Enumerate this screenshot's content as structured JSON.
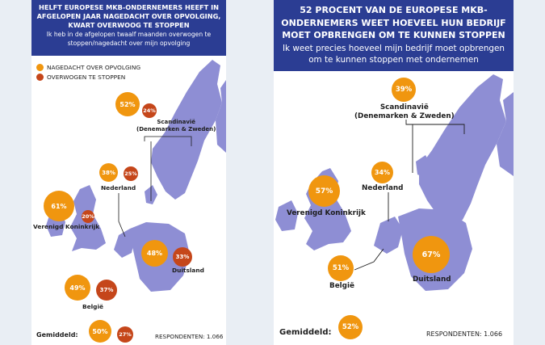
{
  "left": {
    "title": "Helft Europese mkb-ondernemers heeft in afgelopen jaar nagedacht over opvolging, kwart overwoog te stoppen",
    "subtitle": "Ik heb in de afgelopen twaalf maanden overwogen te stoppen/nagedacht over mijn opvolging",
    "legend": [
      {
        "label": "NAGEDACHT OVER OPVOLGING",
        "color": "#f0960f"
      },
      {
        "label": "OVERWOGEN TE STOPPEN",
        "color": "#c5461a"
      }
    ],
    "regions": [
      {
        "name": "Scandinavië\n(Denemarken & Zweden)",
        "opvolging": "52%",
        "stoppen": "24%"
      },
      {
        "name": "Nederland",
        "opvolging": "38%",
        "stoppen": "25%"
      },
      {
        "name": "Verenigd Koninkrijk",
        "opvolging": "61%",
        "stoppen": "20%"
      },
      {
        "name": "Duitsland",
        "opvolging": "48%",
        "stoppen": "33%"
      },
      {
        "name": "België",
        "opvolging": "49%",
        "stoppen": "37%"
      }
    ],
    "average_label": "Gemiddeld:",
    "average_opvolging": "50%",
    "average_stoppen": "27%",
    "respondents": "RESPONDENTEN: 1.066"
  },
  "right": {
    "title": "52 procent van de Europese mkb-ondernemers weet hoeveel hun bedrijf moet opbrengen om te kunnen stoppen",
    "subtitle": "Ik weet precies hoeveel mijn bedrijf moet opbrengen om te kunnen stoppen met ondernemen",
    "regions": [
      {
        "name": "Scandinavië\n(Denemarken & Zweden)",
        "value": "39%"
      },
      {
        "name": "Nederland",
        "value": "34%"
      },
      {
        "name": "Verenigd Koninkrijk",
        "value": "57%"
      },
      {
        "name": "Duitsland",
        "value": "67%"
      },
      {
        "name": "België",
        "value": "51%"
      }
    ],
    "average_label": "Gemiddeld:",
    "average_value": "52%",
    "respondents": "RESPONDENTEN: 1.066"
  },
  "colors": {
    "header": "#2b3d93",
    "land": "#8e8ed4",
    "orange": "#f0960f",
    "rust": "#c5461a"
  }
}
